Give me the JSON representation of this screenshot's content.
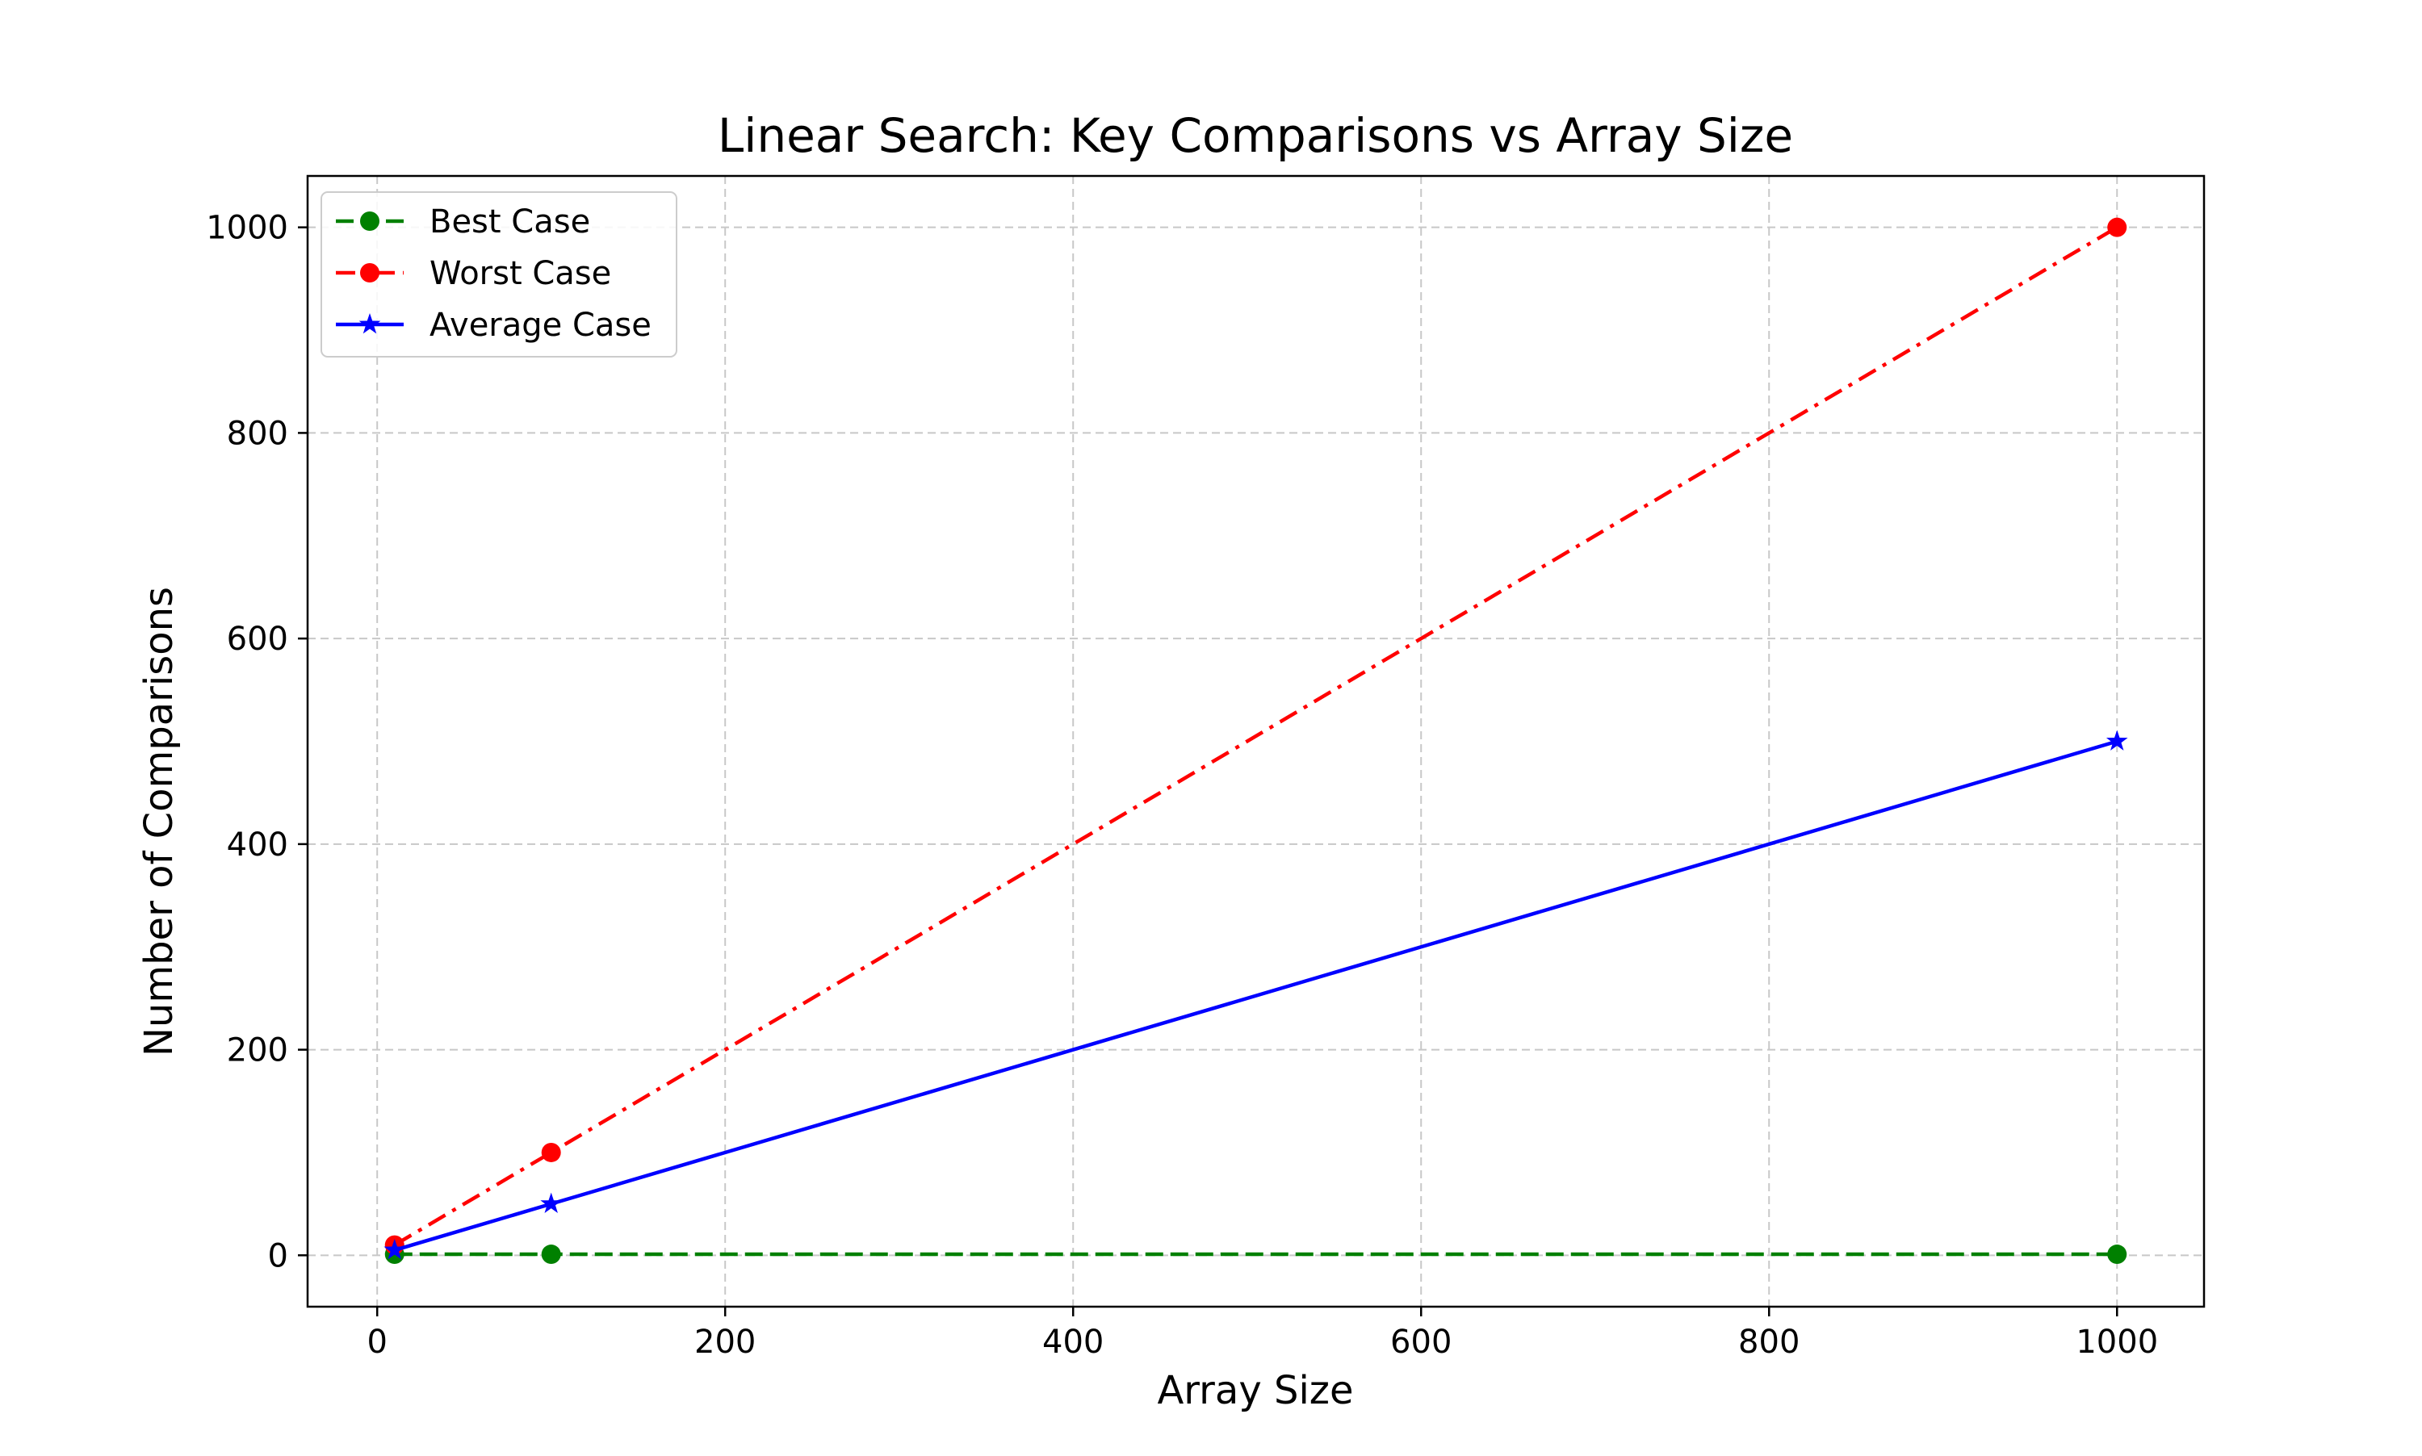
{
  "chart_data": {
    "type": "line",
    "title": "Linear Search: Key Comparisons vs Array Size",
    "xlabel": "Array Size",
    "ylabel": "Number of Comparisons",
    "x": [
      10,
      100,
      1000
    ],
    "xlim": [
      -40,
      1050
    ],
    "ylim": [
      -50,
      1050
    ],
    "xticks": [
      0,
      200,
      400,
      600,
      800,
      1000
    ],
    "yticks": [
      0,
      200,
      400,
      600,
      800,
      1000
    ],
    "grid": true,
    "legend_position": "top-left",
    "series": [
      {
        "name": "Best Case",
        "values": [
          1,
          1,
          1
        ],
        "color": "#008000",
        "line_style": "dashed",
        "marker": "circle"
      },
      {
        "name": "Worst Case",
        "values": [
          10,
          100,
          1000
        ],
        "color": "#ff0000",
        "line_style": "dash-dot",
        "marker": "circle"
      },
      {
        "name": "Average Case",
        "values": [
          5,
          50,
          500
        ],
        "color": "#0000ff",
        "line_style": "solid",
        "marker": "star"
      }
    ]
  }
}
